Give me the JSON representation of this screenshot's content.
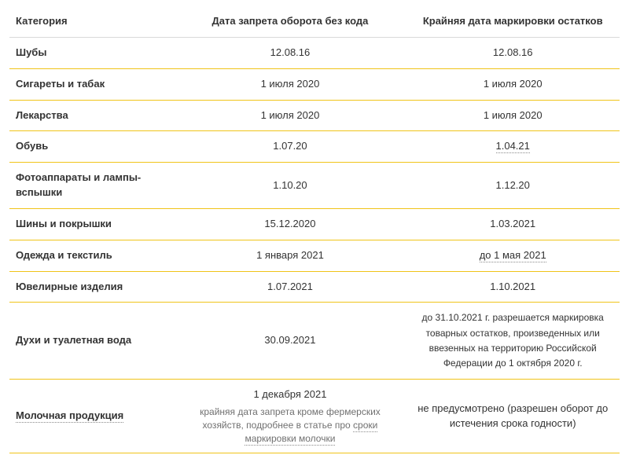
{
  "colors": {
    "row_divider_yellow": "#f0c419",
    "row_divider_gray": "#d9d9d9",
    "link_underline": "#8a8a8a",
    "text_main": "#333333",
    "text_sub": "#707070",
    "background": "#ffffff"
  },
  "table": {
    "headers": {
      "category": "Категория",
      "ban_date": "Дата запрета оборота без кода",
      "deadline": "Крайняя дата маркировки остатков"
    },
    "rows": [
      {
        "cat": "Шубы",
        "c2": "12.08.16",
        "c3": "12.08.16"
      },
      {
        "cat": "Сигареты и табак",
        "c2": "1 июля 2020",
        "c3": "1 июля 2020"
      },
      {
        "cat": "Лекарства",
        "c2": "1 июля 2020",
        "c3": "1 июля 2020"
      },
      {
        "cat": "Обувь",
        "c2": "1.07.20",
        "c3": "1.04.21",
        "c3_under": true
      },
      {
        "cat": "Фотоаппараты и лампы-вспышки",
        "c2": "1.10.20",
        "c3": "1.12.20"
      },
      {
        "cat": "Шины и покрышки",
        "c2": "15.12.2020",
        "c3": "1.03.2021"
      },
      {
        "cat": "Одежда и текстиль",
        "c2": "1 января 2021",
        "c3": "до 1 мая 2021",
        "c3_under": true
      },
      {
        "cat": "Ювелирные изделия",
        "c2": "1.07.2021",
        "c3": "1.10.2021"
      }
    ],
    "perfume": {
      "cat": "Духи и туалетная вода",
      "c2": "30.09.2021",
      "c3": "до 31.10.2021 г. разрешается маркировка товарных остатков, произведенных или ввезенных на территорию Российской Федерации до 1 октября 2020 г."
    },
    "dairy": {
      "cat": "Молочная продукция",
      "c2_main": "1 декабря 2021",
      "c2_sub_prefix": "крайняя дата запрета кроме фермерских хозяйств, подробнее в статье про ",
      "c2_sub_link": "сроки маркировки молочки",
      "c3": "не предусмотрено (разрешен оборот до истечения срока годности)"
    }
  }
}
